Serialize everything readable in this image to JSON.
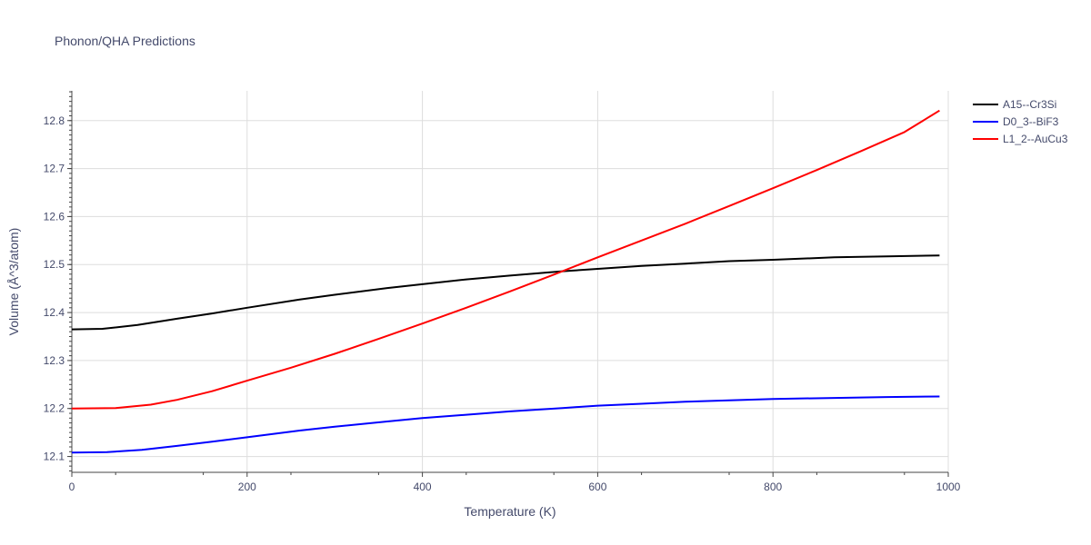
{
  "chart_data": {
    "type": "line",
    "title": "Phonon/QHA Predictions",
    "xlabel": "Temperature (K)",
    "ylabel": "Volume (Å^3/atom)",
    "xlim": [
      0,
      1000
    ],
    "ylim": [
      12.067,
      12.862
    ],
    "xticks": [
      0,
      200,
      400,
      600,
      800,
      1000
    ],
    "yticks": [
      12.1,
      12.2,
      12.3,
      12.4,
      12.5,
      12.6,
      12.7,
      12.8
    ],
    "grid": true,
    "legend_position": "top-right",
    "series": [
      {
        "name": "A15--Cr3Si",
        "color": "#000000",
        "x": [
          0,
          35,
          75,
          120,
          160,
          200,
          260,
          300,
          360,
          400,
          450,
          500,
          560,
          600,
          650,
          700,
          750,
          800,
          870,
          930,
          990
        ],
        "y": [
          12.365,
          12.366,
          12.374,
          12.387,
          12.398,
          12.41,
          12.427,
          12.437,
          12.451,
          12.459,
          12.469,
          12.477,
          12.486,
          12.491,
          12.497,
          12.502,
          12.507,
          12.51,
          12.515,
          12.517,
          12.519
        ]
      },
      {
        "name": "D0_3--BiF3",
        "color": "#0000ff",
        "x": [
          0,
          40,
          80,
          120,
          160,
          200,
          260,
          300,
          360,
          400,
          450,
          500,
          560,
          600,
          650,
          700,
          750,
          800,
          870,
          930,
          990
        ],
        "y": [
          12.108,
          12.109,
          12.114,
          12.122,
          12.131,
          12.14,
          12.154,
          12.162,
          12.173,
          12.18,
          12.187,
          12.194,
          12.201,
          12.206,
          12.21,
          12.214,
          12.217,
          12.22,
          12.222,
          12.224,
          12.225
        ]
      },
      {
        "name": "L1_2--AuCu3",
        "color": "#ff0000",
        "x": [
          0,
          50,
          90,
          120,
          160,
          200,
          250,
          300,
          350,
          400,
          450,
          500,
          550,
          600,
          650,
          700,
          750,
          800,
          850,
          900,
          950,
          990
        ],
        "y": [
          12.2,
          12.201,
          12.208,
          12.218,
          12.236,
          12.258,
          12.285,
          12.314,
          12.345,
          12.377,
          12.41,
          12.444,
          12.479,
          12.515,
          12.55,
          12.585,
          12.622,
          12.659,
          12.697,
          12.736,
          12.776,
          12.821
        ]
      }
    ]
  }
}
